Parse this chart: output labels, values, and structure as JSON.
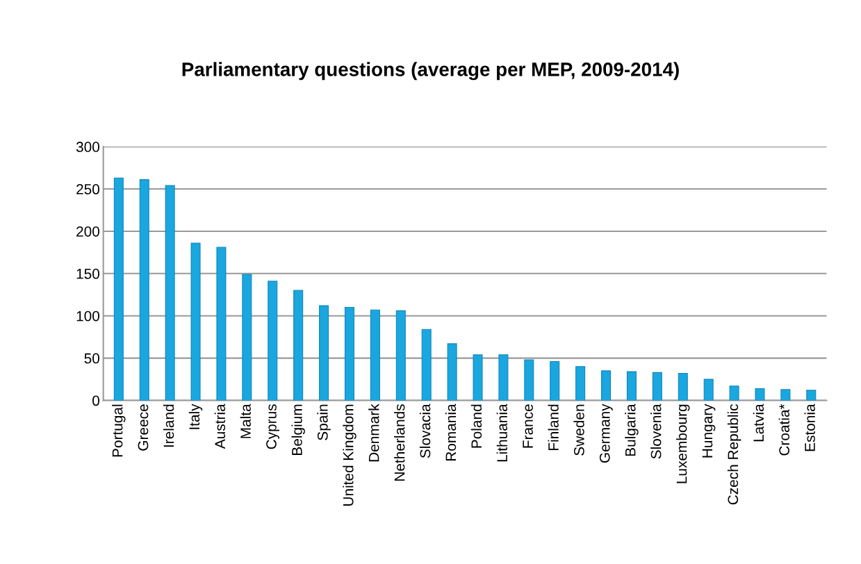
{
  "chart_data": {
    "type": "bar",
    "title": "Parliamentary questions (average per MEP, 2009-2014)",
    "categories": [
      "Portugal",
      "Greece",
      "Ireland",
      "Italy",
      "Austria",
      "Malta",
      "Cyprus",
      "Belgium",
      "Spain",
      "United Kingdom",
      "Denmark",
      "Netherlands",
      "Slovacia",
      "Romania",
      "Poland",
      "Lithuania",
      "France",
      "Finland",
      "Sweden",
      "Germany",
      "Bulgaria",
      "Slovenia",
      "Luxembourg",
      "Hungary",
      "Czech Republic",
      "Latvia",
      "Croatia*",
      "Estonia"
    ],
    "values": [
      263,
      261,
      254,
      186,
      181,
      149,
      141,
      130,
      112,
      110,
      107,
      106,
      84,
      67,
      54,
      54,
      48,
      46,
      40,
      35,
      34,
      33,
      32,
      25,
      17,
      14,
      13,
      12
    ],
    "color": "#1aa7e0",
    "ylim": [
      0,
      300
    ],
    "yticks": [
      0,
      50,
      100,
      150,
      200,
      250,
      300
    ],
    "grid": "y"
  }
}
